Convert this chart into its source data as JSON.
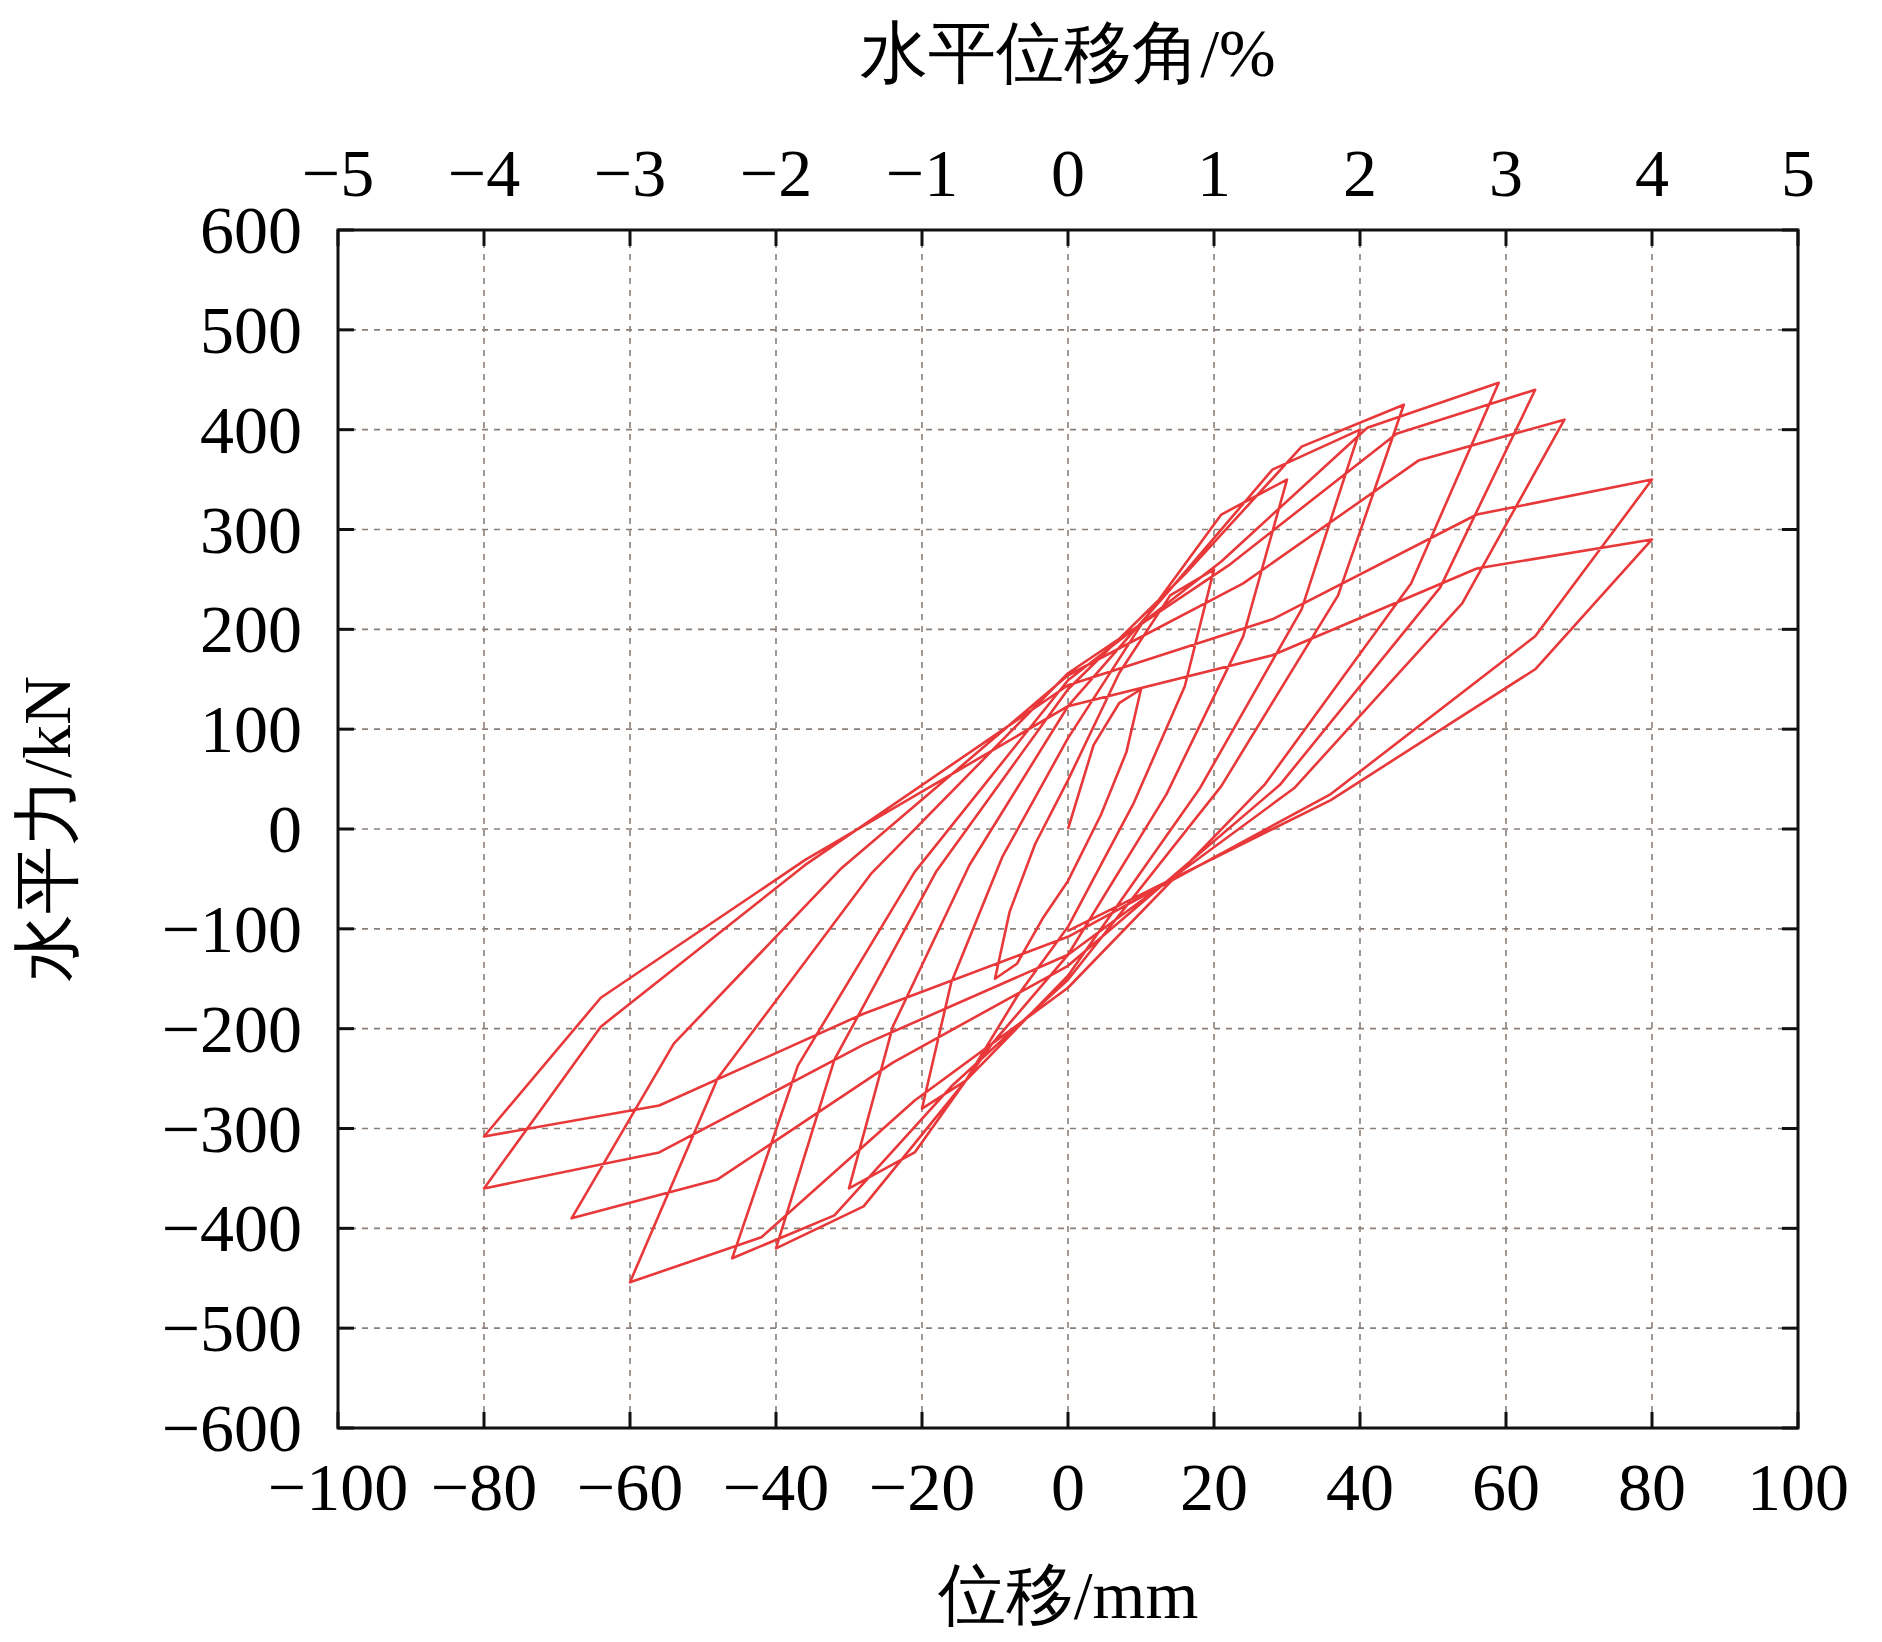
{
  "chart_data": {
    "type": "line",
    "xlabel": "位移/mm",
    "ylabel": "水平力/kN",
    "x2label": "水平位移角/%",
    "xlim": [
      -100,
      100
    ],
    "ylim": [
      -600,
      600
    ],
    "x2lim": [
      -5,
      5
    ],
    "xticks": [
      {
        "value": -100,
        "label": "−100"
      },
      {
        "value": -80,
        "label": "−80"
      },
      {
        "value": -60,
        "label": "−60"
      },
      {
        "value": -40,
        "label": "−40"
      },
      {
        "value": -20,
        "label": "−20"
      },
      0,
      20,
      40,
      60,
      80,
      100
    ],
    "yticks": [
      {
        "value": -600,
        "label": "−600"
      },
      {
        "value": -500,
        "label": "−500"
      },
      {
        "value": -400,
        "label": "−400"
      },
      {
        "value": -300,
        "label": "−300"
      },
      {
        "value": -200,
        "label": "−200"
      },
      {
        "value": -100,
        "label": "−100"
      },
      0,
      100,
      200,
      300,
      400,
      500,
      600
    ],
    "x2ticks": [
      {
        "value": -5,
        "label": "−5"
      },
      {
        "value": -4,
        "label": "−4"
      },
      {
        "value": -3,
        "label": "−3"
      },
      {
        "value": -2,
        "label": "−2"
      },
      {
        "value": -1,
        "label": "−1"
      },
      0,
      1,
      2,
      3,
      4,
      5
    ],
    "grid": true,
    "series": [
      {
        "color": "#e8383a",
        "x": [
          0,
          3.5,
          7,
          10,
          8,
          4.5,
          0,
          -3.5,
          -7,
          -10,
          -8,
          -4.5,
          0,
          7,
          14,
          20,
          16,
          9,
          0,
          -7,
          -14,
          -20,
          -16,
          -9,
          0,
          10.5,
          21,
          30,
          24,
          13.5,
          0,
          -10.5,
          -21,
          -30,
          -24,
          -13.5,
          0,
          14,
          28,
          40,
          32,
          18,
          0,
          -14,
          -28,
          -40,
          -32,
          -18,
          0,
          16,
          32,
          46,
          37,
          21,
          0,
          -16,
          -32,
          -46,
          -37,
          -21,
          0,
          21,
          41,
          59,
          47,
          27,
          0,
          -21,
          -42,
          -60,
          -48,
          -27,
          0,
          22,
          45,
          64,
          51,
          29,
          0,
          -24,
          -48,
          -68,
          -54,
          -31,
          0,
          24,
          48,
          68,
          54,
          31,
          0,
          -28,
          -56,
          -80,
          -64,
          -36,
          0,
          28,
          56,
          80,
          64,
          36,
          0,
          -28,
          -56,
          -80,
          -64,
          -36,
          0,
          28,
          56,
          80,
          64,
          36,
          0
        ],
        "values": [
          0,
          84,
          126,
          140,
          77,
          14,
          -52,
          -90,
          -135,
          -150,
          -83,
          -15,
          49,
          156,
          234,
          260,
          143,
          26,
          -98,
          -168,
          -252,
          -280,
          -154,
          -28,
          91,
          210,
          315,
          350,
          193,
          35,
          -126,
          -216,
          -324,
          -360,
          -198,
          -36,
          123,
          240,
          360,
          400,
          220,
          40,
          -147,
          -252,
          -378,
          -420,
          -231,
          -42,
          140,
          255,
          383,
          425,
          234,
          43,
          -151,
          -258,
          -387,
          -430,
          -237,
          -43,
          149,
          268,
          402,
          447,
          246,
          45,
          -159,
          -272,
          -409,
          -454,
          -250,
          -45,
          156,
          264,
          396,
          440,
          242,
          44,
          -137,
          -234,
          -351,
          -390,
          -215,
          -39,
          154,
          246,
          369,
          410,
          226,
          41,
          -126,
          -216,
          -324,
          -360,
          -198,
          -36,
          144,
          210,
          315,
          350,
          193,
          35,
          -108,
          -185,
          -277,
          -308,
          -169,
          -31,
          123,
          174,
          261,
          290,
          160,
          29,
          -102
        ]
      }
    ]
  }
}
